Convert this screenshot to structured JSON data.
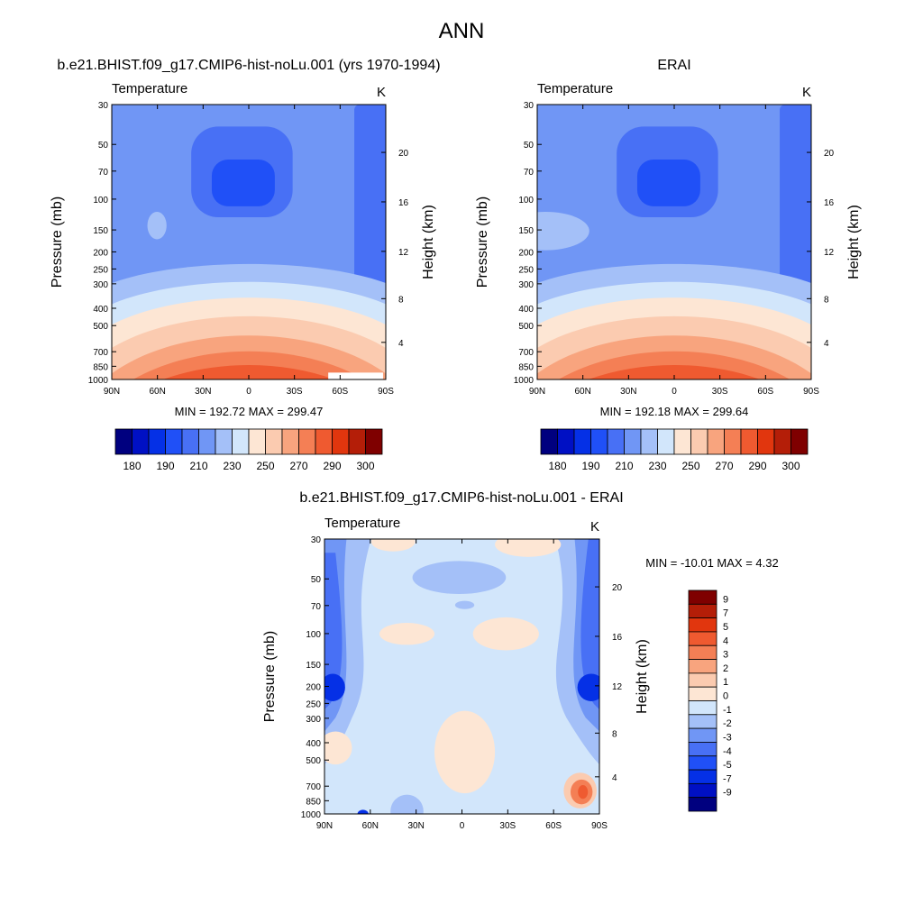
{
  "figure": {
    "title": "ANN"
  },
  "palettes": {
    "abs": [
      "#00007f",
      "#0010c4",
      "#0530e6",
      "#2050f7",
      "#4870f5",
      "#7096f5",
      "#a4c0f8",
      "#d2e6fb",
      "#fde6d4",
      "#fbcbb0",
      "#f8a47e",
      "#f47f55",
      "#ef5a30",
      "#e1360e",
      "#b41e08",
      "#7f0000"
    ],
    "diff": [
      "#00007f",
      "#0010c4",
      "#0530e6",
      "#2050f7",
      "#4870f5",
      "#7096f5",
      "#a4c0f8",
      "#d2e6fb",
      "#fde6d4",
      "#fbcbb0",
      "#f8a47e",
      "#f47f55",
      "#ef5a30",
      "#e1360e",
      "#b41e08",
      "#7f0000"
    ]
  },
  "chart_data": [
    {
      "type": "heatmap",
      "title": "b.e21.BHIST.f09_g17.CMIP6-hist-noLu.001 (yrs 1970-1994)",
      "left_label": "Temperature",
      "right_label": "K",
      "ylabel": "Pressure (mb)",
      "ylabel_right": "Height (km)",
      "xticks": [
        "90N",
        "60N",
        "30N",
        "0",
        "30S",
        "60S",
        "90S"
      ],
      "yticks": [
        "30",
        "50",
        "70",
        "100",
        "150",
        "200",
        "250",
        "300",
        "400",
        "500",
        "700",
        "850",
        "1000"
      ],
      "yticks_right": [
        "20",
        "16",
        "12",
        "8",
        "4"
      ],
      "stats": "MIN = 192.72  MAX = 299.47",
      "min": 192.72,
      "max": 299.47,
      "colorbar_labels": [
        "180",
        "190",
        "210",
        "230",
        "250",
        "270",
        "290",
        "300"
      ],
      "variant": "model"
    },
    {
      "type": "heatmap",
      "title": "ERAI",
      "left_label": "Temperature",
      "right_label": "K",
      "ylabel": "Pressure (mb)",
      "ylabel_right": "Height (km)",
      "xticks": [
        "90N",
        "60N",
        "30N",
        "0",
        "30S",
        "60S",
        "90S"
      ],
      "yticks": [
        "30",
        "50",
        "70",
        "100",
        "150",
        "200",
        "250",
        "300",
        "400",
        "500",
        "700",
        "850",
        "1000"
      ],
      "yticks_right": [
        "20",
        "16",
        "12",
        "8",
        "4"
      ],
      "stats": "MIN = 192.18  MAX = 299.64",
      "min": 192.18,
      "max": 299.64,
      "colorbar_labels": [
        "180",
        "190",
        "210",
        "230",
        "250",
        "270",
        "290",
        "300"
      ],
      "variant": "obs"
    },
    {
      "type": "heatmap",
      "title": "b.e21.BHIST.f09_g17.CMIP6-hist-noLu.001 - ERAI",
      "left_label": "Temperature",
      "right_label": "K",
      "ylabel": "Pressure (mb)",
      "ylabel_right": "Height (km)",
      "xticks": [
        "90N",
        "60N",
        "30N",
        "0",
        "30S",
        "60S",
        "90S"
      ],
      "yticks": [
        "30",
        "50",
        "70",
        "100",
        "150",
        "200",
        "250",
        "300",
        "400",
        "500",
        "700",
        "850",
        "1000"
      ],
      "yticks_right": [
        "20",
        "16",
        "12",
        "8",
        "4"
      ],
      "stats": "MIN = -10.01  MAX =   4.32",
      "min": -10.01,
      "max": 4.32,
      "colorbar_labels": [
        "9",
        "7",
        "5",
        "4",
        "3",
        "2",
        "1",
        "0",
        "-1",
        "-2",
        "-3",
        "-4",
        "-5",
        "-7",
        "-9"
      ],
      "variant": "diff"
    }
  ]
}
